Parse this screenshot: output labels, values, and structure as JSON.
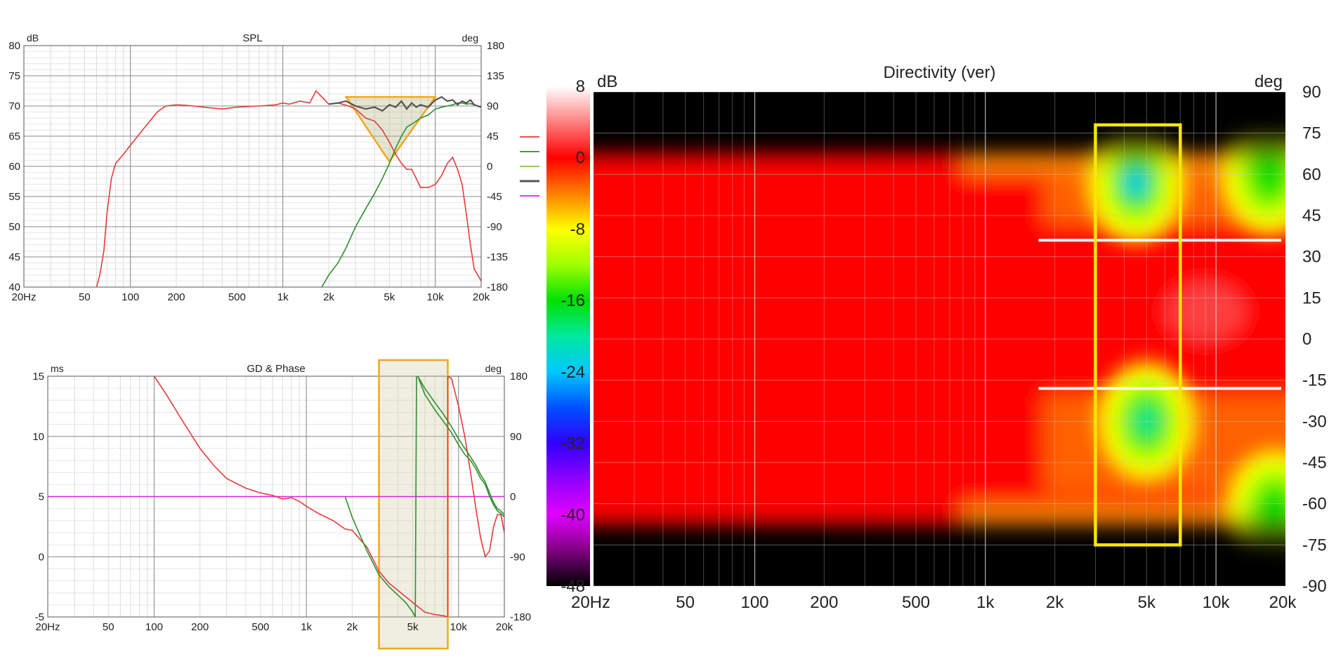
{
  "chart_data": [
    {
      "type": "line",
      "title": "SPL",
      "ylabel_left": "dB",
      "ylabel_right": "deg",
      "xscale": "log",
      "xlim": [
        20,
        20000
      ],
      "ylim": [
        40,
        80
      ],
      "ylim_right": [
        -180,
        180
      ],
      "grid": true,
      "x_ticks": [
        "20Hz",
        "50",
        "100",
        "200",
        "500",
        "1k",
        "2k",
        "5k",
        "10k",
        "20k"
      ],
      "y_ticks": [
        "80",
        "75",
        "70",
        "65",
        "60",
        "55",
        "50",
        "45",
        "40"
      ],
      "y_right_ticks": [
        "180",
        "135",
        "90",
        "45",
        "0",
        "-45",
        "-90",
        "-135",
        "-180"
      ],
      "legend_colors": [
        "#e83a3a",
        "#2f8f2f",
        "#7fc93f",
        "#555555",
        "#e020e0"
      ],
      "highlight_triangle": {
        "x": [
          2600,
          10000,
          5000
        ],
        "y": [
          71.5,
          71.5,
          60.8
        ],
        "color": "#f0a820"
      },
      "series": [
        {
          "color": "#e83a3a",
          "x": [
            60,
            63,
            67,
            70,
            75,
            80,
            90,
            100,
            120,
            150,
            170,
            200,
            230,
            260,
            300,
            400,
            500,
            700,
            900,
            1000,
            1100,
            1300,
            1500,
            1650,
            1800,
            2000,
            2300,
            2700,
            3000,
            3500,
            4000,
            4500,
            5000,
            5500,
            6000,
            6500,
            7000,
            7500,
            8000,
            8500,
            9000,
            10000,
            11000,
            12000,
            13000,
            14000,
            15000,
            16000,
            17000,
            18000,
            20000
          ],
          "y": [
            40,
            42,
            46,
            52,
            58,
            60.5,
            62,
            63.5,
            66,
            69,
            70,
            70.2,
            70.1,
            70,
            69.8,
            69.5,
            69.8,
            70,
            70.2,
            70.5,
            70.3,
            70.8,
            70.5,
            72.5,
            71.5,
            70.3,
            70.5,
            70,
            69.5,
            68,
            67.5,
            66,
            64,
            62,
            60.5,
            59.5,
            59.5,
            58,
            56.5,
            56.5,
            56.5,
            57,
            58.5,
            60.5,
            61.5,
            59.5,
            57,
            52,
            47,
            43,
            41
          ]
        },
        {
          "color": "#2f8f2f",
          "x": [
            1800,
            2000,
            2300,
            2600,
            3000,
            3500,
            4000,
            4500,
            5000,
            5500,
            6000,
            6500,
            7000,
            7500,
            8000,
            9000,
            10000,
            11000,
            12000,
            13000,
            14000,
            15000,
            16000,
            17000,
            18000,
            20000
          ],
          "y": [
            40,
            42,
            44,
            46.5,
            50,
            53,
            55.5,
            58,
            60.5,
            63,
            65,
            66.5,
            67,
            67.5,
            68,
            68.5,
            69.5,
            69.8,
            70,
            70.2,
            70.5,
            70.5,
            70.3,
            70.4,
            70.2,
            69.8
          ]
        },
        {
          "color": "#555555",
          "x": [
            2000,
            2300,
            2600,
            3000,
            3500,
            4000,
            4500,
            5000,
            5500,
            6000,
            6500,
            7000,
            7500,
            8000,
            9000,
            10000,
            11000,
            12000,
            13000,
            14000,
            15000,
            16000,
            17000,
            18000,
            20000
          ],
          "y": [
            70.3,
            70.5,
            70.8,
            70,
            69.5,
            69.8,
            69.2,
            70.2,
            69.8,
            70.8,
            69.5,
            70.5,
            69.8,
            70.2,
            69.8,
            71,
            71.5,
            70.8,
            71,
            70.2,
            70.8,
            70.5,
            71,
            70.2,
            69.8
          ]
        }
      ]
    },
    {
      "type": "line",
      "title": "GD & Phase",
      "ylabel_left": "ms",
      "ylabel_right": "deg",
      "xscale": "log",
      "xlim": [
        20,
        20000
      ],
      "ylim": [
        -5,
        15
      ],
      "ylim_right": [
        -180,
        180
      ],
      "grid": true,
      "x_ticks": [
        "20Hz",
        "50",
        "100",
        "200",
        "500",
        "1k",
        "2k",
        "5k",
        "10k",
        "20k"
      ],
      "y_ticks": [
        "15",
        "10",
        "5",
        "0",
        "-5"
      ],
      "y_right_ticks": [
        "180",
        "90",
        "0",
        "-90",
        "-180"
      ],
      "highlight_band": {
        "x": [
          3000,
          8500
        ],
        "color": "#f0a820"
      },
      "series": [
        {
          "name": "GD",
          "color": "#e020e0",
          "x": [
            20,
            20000
          ],
          "y": [
            5,
            5
          ]
        },
        {
          "color": "#e83a3a",
          "x": [
            100,
            120,
            150,
            200,
            250,
            300,
            400,
            500,
            600,
            700,
            800,
            900,
            1000,
            1200,
            1500,
            1800,
            2000,
            2500,
            3000,
            3500,
            4000,
            5000,
            6000,
            7000,
            8000,
            8500,
            8501,
            9000,
            10000,
            11000,
            12000,
            13000,
            14000,
            15000,
            16000,
            17000,
            18000,
            19000,
            20000
          ],
          "y": [
            15,
            13.5,
            11.5,
            9,
            7.5,
            6.5,
            5.7,
            5.3,
            5.1,
            4.8,
            4.9,
            4.6,
            4.2,
            3.6,
            3,
            2.3,
            2.2,
            0.8,
            -1.2,
            -2.2,
            -2.8,
            -3.8,
            -4.6,
            -4.8,
            -4.9,
            -5,
            15,
            14.8,
            12.5,
            10,
            7,
            4,
            1.5,
            0,
            0.5,
            2.5,
            3.5,
            3.5,
            2
          ]
        },
        {
          "color": "#2f8f2f",
          "x": [
            1800,
            2000,
            2500,
            3000,
            3500,
            4000,
            4500,
            5000,
            5200,
            5300,
            5400,
            6000,
            7000,
            8000,
            9000,
            10000,
            11000,
            12000,
            13000,
            14000,
            15000,
            16000,
            17000,
            18000,
            19000,
            20000
          ],
          "y": [
            5,
            3.3,
            0.5,
            -1.5,
            -2.5,
            -3.2,
            -3.8,
            -4.6,
            -5,
            15,
            15,
            13.5,
            12.2,
            11.2,
            10.3,
            9.3,
            8.5,
            8,
            7.3,
            6.5,
            6,
            5,
            4.3,
            3.8,
            3.6,
            3.3
          ]
        },
        {
          "color": "#2f8f2f",
          "x": [
            5400,
            6000,
            7000,
            8000,
            9000,
            10000,
            11000,
            12000,
            13000,
            14000,
            15000,
            16000,
            17000,
            18000,
            19000,
            20000
          ],
          "y": [
            15,
            14,
            12.8,
            11.8,
            10.8,
            9.8,
            9,
            8.3,
            7.6,
            6.8,
            6.2,
            5.3,
            4.5,
            4,
            3.8,
            3.5
          ]
        }
      ]
    },
    {
      "type": "heatmap",
      "title": "Directivity (ver)",
      "ylabel_left": "dB",
      "ylabel_right": "deg",
      "xscale": "log",
      "xlim": [
        20,
        20000
      ],
      "ylim": [
        -90,
        90
      ],
      "grid": true,
      "x_ticks": [
        "20Hz",
        "50",
        "100",
        "200",
        "500",
        "1k",
        "2k",
        "5k",
        "10k",
        "20k"
      ],
      "y_ticks": [
        "90",
        "75",
        "60",
        "45",
        "30",
        "15",
        "0",
        "-15",
        "-30",
        "-45",
        "-60",
        "-75",
        "-90"
      ],
      "colorbar_ticks": [
        "8",
        "0",
        "-8",
        "-16",
        "-24",
        "-32",
        "-40",
        "-48"
      ],
      "colorbar_range": [
        -48,
        8
      ],
      "color_stops": [
        {
          "db": 8,
          "color": "#ffffff"
        },
        {
          "db": 4,
          "color": "#ff8080"
        },
        {
          "db": 0,
          "color": "#ff0000"
        },
        {
          "db": -4,
          "color": "#ff8000"
        },
        {
          "db": -8,
          "color": "#ffff00"
        },
        {
          "db": -12,
          "color": "#a0ff00"
        },
        {
          "db": -16,
          "color": "#00e000"
        },
        {
          "db": -20,
          "color": "#00e8a0"
        },
        {
          "db": -24,
          "color": "#00c8ff"
        },
        {
          "db": -28,
          "color": "#0050ff"
        },
        {
          "db": -32,
          "color": "#3000ff"
        },
        {
          "db": -36,
          "color": "#9000ff"
        },
        {
          "db": -40,
          "color": "#e000ff"
        },
        {
          "db": -44,
          "color": "#800080"
        },
        {
          "db": -48,
          "color": "#000000"
        }
      ],
      "angle_range_measured": [
        -70,
        70
      ],
      "hot_spots": [
        {
          "f": 4500,
          "deg": 57,
          "db": -24
        },
        {
          "f": 5000,
          "deg": -30,
          "db": -20
        },
        {
          "f": 17000,
          "deg": 60,
          "db": -16
        },
        {
          "f": 18000,
          "deg": -62,
          "db": -16
        }
      ],
      "highlight_rect": {
        "x": [
          3000,
          7000
        ],
        "y": [
          -75,
          78
        ],
        "color": "#f6e600"
      },
      "marker_lines": [
        {
          "deg": 36,
          "x": [
            1700,
            20000
          ],
          "color": "#ffffff"
        },
        {
          "deg": -18,
          "x": [
            1700,
            20000
          ],
          "color": "#ffffff"
        }
      ]
    }
  ]
}
